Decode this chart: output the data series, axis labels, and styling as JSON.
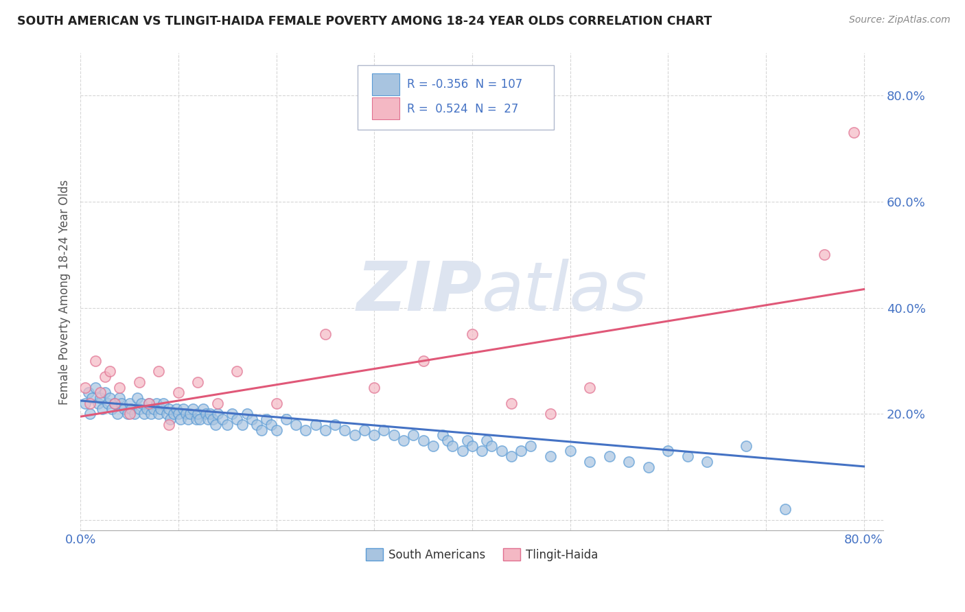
{
  "title": "SOUTH AMERICAN VS TLINGIT-HAIDA FEMALE POVERTY AMONG 18-24 YEAR OLDS CORRELATION CHART",
  "source": "Source: ZipAtlas.com",
  "ylabel": "Female Poverty Among 18-24 Year Olds",
  "xlim": [
    0.0,
    0.82
  ],
  "ylim": [
    -0.02,
    0.88
  ],
  "south_american_R": -0.356,
  "south_american_N": 107,
  "tlingit_haida_R": 0.524,
  "tlingit_haida_N": 27,
  "sa_color": "#a8c4e0",
  "sa_edge_color": "#5b9bd5",
  "sa_line_color": "#4472c4",
  "th_color": "#f4b8c4",
  "th_edge_color": "#e07090",
  "th_line_color": "#e05878",
  "watermark_zip": "#d0d8e8",
  "watermark_atlas": "#c8d4e4",
  "background_color": "#ffffff",
  "grid_color": "#cccccc",
  "tick_label_color": "#4472c4",
  "sa_line_intercept": 0.225,
  "sa_line_slope": -0.155,
  "th_line_intercept": 0.195,
  "th_line_slope": 0.3,
  "sa_x": [
    0.005,
    0.008,
    0.01,
    0.012,
    0.015,
    0.018,
    0.02,
    0.022,
    0.025,
    0.028,
    0.03,
    0.032,
    0.035,
    0.038,
    0.04,
    0.042,
    0.045,
    0.048,
    0.05,
    0.052,
    0.055,
    0.058,
    0.06,
    0.062,
    0.065,
    0.068,
    0.07,
    0.072,
    0.075,
    0.078,
    0.08,
    0.082,
    0.085,
    0.088,
    0.09,
    0.092,
    0.095,
    0.098,
    0.1,
    0.102,
    0.105,
    0.108,
    0.11,
    0.112,
    0.115,
    0.118,
    0.12,
    0.122,
    0.125,
    0.128,
    0.13,
    0.132,
    0.135,
    0.138,
    0.14,
    0.145,
    0.15,
    0.155,
    0.16,
    0.165,
    0.17,
    0.175,
    0.18,
    0.185,
    0.19,
    0.195,
    0.2,
    0.21,
    0.22,
    0.23,
    0.24,
    0.25,
    0.26,
    0.27,
    0.28,
    0.29,
    0.3,
    0.31,
    0.32,
    0.33,
    0.34,
    0.35,
    0.36,
    0.37,
    0.375,
    0.38,
    0.39,
    0.395,
    0.4,
    0.41,
    0.415,
    0.42,
    0.43,
    0.44,
    0.45,
    0.46,
    0.48,
    0.5,
    0.52,
    0.54,
    0.56,
    0.58,
    0.6,
    0.62,
    0.64,
    0.68,
    0.72
  ],
  "sa_y": [
    0.22,
    0.24,
    0.2,
    0.23,
    0.25,
    0.22,
    0.23,
    0.21,
    0.24,
    0.22,
    0.23,
    0.21,
    0.22,
    0.2,
    0.23,
    0.22,
    0.21,
    0.2,
    0.22,
    0.21,
    0.2,
    0.23,
    0.21,
    0.22,
    0.2,
    0.21,
    0.22,
    0.2,
    0.21,
    0.22,
    0.2,
    0.21,
    0.22,
    0.2,
    0.21,
    0.19,
    0.2,
    0.21,
    0.2,
    0.19,
    0.21,
    0.2,
    0.19,
    0.2,
    0.21,
    0.19,
    0.2,
    0.19,
    0.21,
    0.2,
    0.19,
    0.2,
    0.19,
    0.18,
    0.2,
    0.19,
    0.18,
    0.2,
    0.19,
    0.18,
    0.2,
    0.19,
    0.18,
    0.17,
    0.19,
    0.18,
    0.17,
    0.19,
    0.18,
    0.17,
    0.18,
    0.17,
    0.18,
    0.17,
    0.16,
    0.17,
    0.16,
    0.17,
    0.16,
    0.15,
    0.16,
    0.15,
    0.14,
    0.16,
    0.15,
    0.14,
    0.13,
    0.15,
    0.14,
    0.13,
    0.15,
    0.14,
    0.13,
    0.12,
    0.13,
    0.14,
    0.12,
    0.13,
    0.11,
    0.12,
    0.11,
    0.1,
    0.13,
    0.12,
    0.11,
    0.14,
    0.02
  ],
  "th_x": [
    0.005,
    0.01,
    0.015,
    0.02,
    0.025,
    0.03,
    0.035,
    0.04,
    0.05,
    0.06,
    0.07,
    0.08,
    0.09,
    0.1,
    0.12,
    0.14,
    0.16,
    0.2,
    0.25,
    0.3,
    0.35,
    0.4,
    0.44,
    0.48,
    0.52,
    0.76,
    0.79
  ],
  "th_y": [
    0.25,
    0.22,
    0.3,
    0.24,
    0.27,
    0.28,
    0.22,
    0.25,
    0.2,
    0.26,
    0.22,
    0.28,
    0.18,
    0.24,
    0.26,
    0.22,
    0.28,
    0.22,
    0.35,
    0.25,
    0.3,
    0.35,
    0.22,
    0.2,
    0.25,
    0.5,
    0.73
  ]
}
